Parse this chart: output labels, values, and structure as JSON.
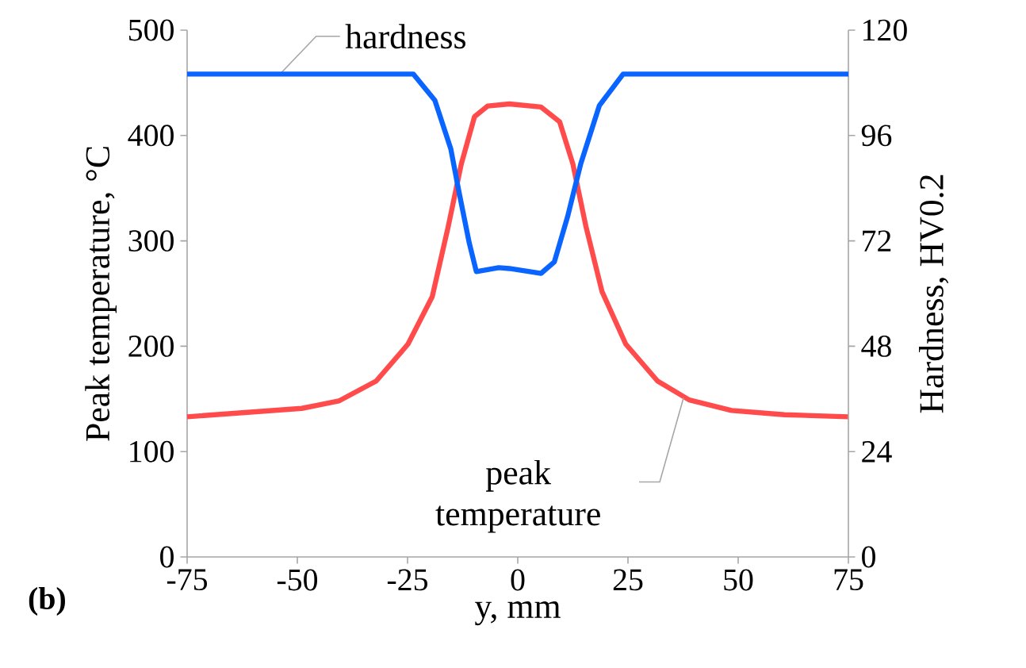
{
  "chart_data": {
    "type": "line",
    "xlabel": "y, mm",
    "ylabel": "Peak temperature, °C",
    "y2label": "Hardness, HV0.2",
    "xlim": [
      -75,
      75
    ],
    "xticks": [
      -75,
      -50,
      -25,
      0,
      25,
      50,
      75
    ],
    "ylim": [
      0,
      500
    ],
    "yticks": [
      0,
      100,
      200,
      300,
      400,
      500
    ],
    "y2lim": [
      0,
      120
    ],
    "y2ticks": [
      0,
      24,
      48,
      72,
      96,
      120
    ],
    "marker": "none",
    "line_style": "solid",
    "series": [
      {
        "color": "#ff4b4b",
        "x": [
          -75,
          -49,
          -40.6,
          -32.1,
          -24.9,
          -19.4,
          -15.8,
          -12.8,
          -9.8,
          -6.8,
          -1.9,
          5.3,
          9.5,
          12.5,
          15.5,
          19.1,
          24.5,
          31.7,
          38.9,
          48.5,
          60.5,
          75
        ],
        "values": [
          133,
          141,
          148,
          167,
          202,
          247,
          313,
          373,
          418,
          428,
          430,
          427,
          413,
          373,
          313,
          252,
          202,
          167,
          149,
          139,
          135,
          133
        ]
      },
      {
        "color": "#0a64ff",
        "axis": "y2",
        "x": [
          -75,
          -23.7,
          -18.8,
          -15.2,
          -13.4,
          -11,
          -9.4,
          -4.3,
          -1.9,
          5.3,
          8.3,
          11.3,
          14.3,
          18.5,
          23.9,
          75
        ],
        "values": [
          110,
          110,
          104,
          93,
          83.5,
          71.5,
          65,
          65.9,
          65.7,
          64.6,
          67.2,
          77.5,
          89.6,
          102.8,
          110,
          110
        ]
      }
    ],
    "annotations": [
      {
        "text": "hardness",
        "x": -54,
        "y": 458
      },
      {
        "text": "peak temperature",
        "x": 37.6,
        "y": 151
      },
      "(b)"
    ]
  }
}
